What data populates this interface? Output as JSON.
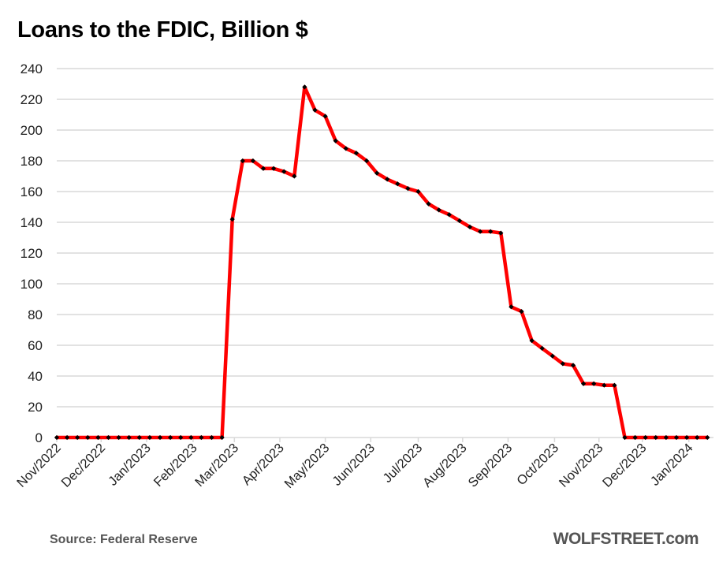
{
  "chart_data": {
    "type": "line",
    "title": "Loans to the FDIC, Billion $",
    "xlabel": "",
    "ylabel": "",
    "ylim": [
      0,
      240
    ],
    "yticks": [
      "0",
      "20",
      "40",
      "60",
      "80",
      "100",
      "120",
      "140",
      "160",
      "180",
      "200",
      "220",
      "240"
    ],
    "ytick_values": [
      0,
      20,
      40,
      60,
      80,
      100,
      120,
      140,
      160,
      180,
      200,
      220,
      240
    ],
    "grid": true,
    "frequency": "weekly",
    "xtick_labels": [
      "Nov/2022",
      "Dec/2022",
      "Jan/2023",
      "Feb/2023",
      "Mar/2023",
      "Apr/2023",
      "May/2023",
      "Jun/2023",
      "Jul/2023",
      "Aug/2023",
      "Sep/2023",
      "Oct/2023",
      "Nov/2023",
      "Dec/2023",
      "Jan/2024"
    ],
    "xtick_index": [
      0,
      4.3,
      8.7,
      13.2,
      17.2,
      21.6,
      26,
      30.4,
      35,
      39.3,
      43.7,
      48.2,
      52.5,
      56.7,
      61.2
    ],
    "series": [
      {
        "name": "Loans to the FDIC",
        "color": "#ff0000",
        "marker_color": "#000000",
        "values": [
          0,
          0,
          0,
          0,
          0,
          0,
          0,
          0,
          0,
          0,
          0,
          0,
          0,
          0,
          0,
          0,
          0,
          142,
          180,
          180,
          175,
          175,
          173,
          170,
          228,
          213,
          209,
          193,
          188,
          185,
          180,
          172,
          168,
          165,
          162,
          160,
          152,
          148,
          145,
          141,
          137,
          134,
          134,
          133,
          85,
          82,
          63,
          58,
          53,
          48,
          47,
          35,
          35,
          34,
          34,
          0,
          0,
          0,
          0,
          0,
          0,
          0,
          0,
          0
        ]
      }
    ]
  },
  "footer": {
    "source": "Source: Federal Reserve",
    "brand": "WOLFSTREET.com"
  }
}
